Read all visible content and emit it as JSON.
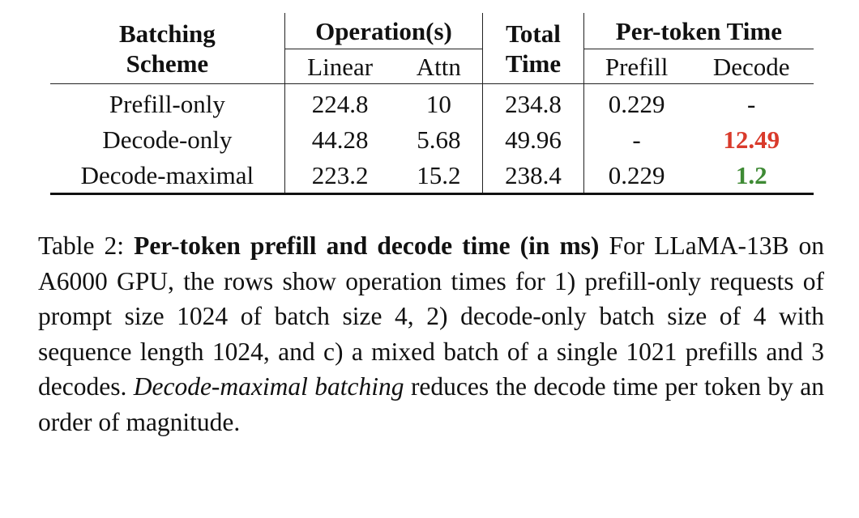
{
  "table": {
    "headers": {
      "scheme_line1": "Batching",
      "scheme_line2": "Scheme",
      "operations": "Operation(s)",
      "linear": "Linear",
      "attn": "Attn",
      "total_line1": "Total",
      "total_line2": "Time",
      "per_token": "Per-token Time",
      "prefill": "Prefill",
      "decode": "Decode"
    },
    "rows": [
      {
        "scheme": "Prefill-only",
        "linear": "224.8",
        "attn": "10",
        "total": "234.8",
        "prefill": "0.229",
        "decode": "-"
      },
      {
        "scheme": "Decode-only",
        "linear": "44.28",
        "attn": "5.68",
        "total": "49.96",
        "prefill": "-",
        "decode": "12.49"
      },
      {
        "scheme": "Decode-maximal",
        "linear": "223.2",
        "attn": "15.2",
        "total": "238.4",
        "prefill": "0.229",
        "decode": "1.2"
      }
    ],
    "highlight_colors": {
      "bad": "#d93a2b",
      "good": "#3e8a34"
    }
  },
  "caption": {
    "label": "Table 2:",
    "bold_title": "Per-token prefill and decode time (in ms)",
    "text1": "For LLaMA-13B on A6000 GPU, the rows show operation times for 1) prefill-only requests of prompt size 1024 of batch size 4, 2) decode-only batch size of 4 with sequence length 1024, and c) a mixed batch of a single 1021 prefills and 3 decodes.",
    "italic_term": "Decode-maximal batching",
    "text2": "reduces the decode time per token by an order of magnitude."
  }
}
